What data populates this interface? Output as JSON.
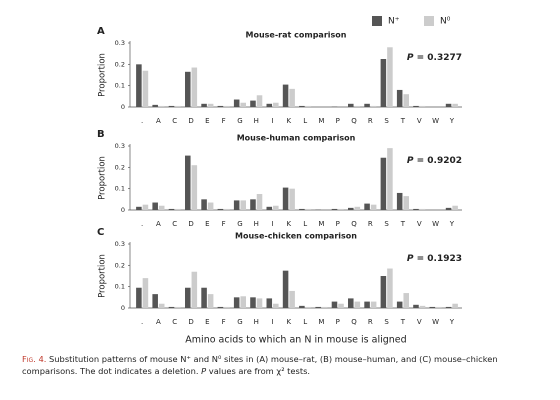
{
  "chart_data": [
    {
      "type": "bar",
      "panel": "A",
      "title": "Mouse-rat comparison",
      "annotation": {
        "symbol": "P",
        "text": " = 0.3277"
      },
      "ylabel": "Proportion",
      "categories": [
        ".",
        "A",
        "C",
        "D",
        "E",
        "F",
        "G",
        "H",
        "I",
        "K",
        "L",
        "M",
        "P",
        "Q",
        "R",
        "S",
        "T",
        "V",
        "W",
        "Y"
      ],
      "series": [
        {
          "name": "N⁺",
          "color": "#555555",
          "values": [
            0.2,
            0.01,
            0.005,
            0.165,
            0.015,
            0.005,
            0.035,
            0.03,
            0.015,
            0.105,
            0.005,
            0,
            0.002,
            0.015,
            0.015,
            0.225,
            0.08,
            0.005,
            0,
            0.015
          ]
        },
        {
          "name": "N⁰",
          "color": "#cccccc",
          "values": [
            0.17,
            0.005,
            0.005,
            0.185,
            0.015,
            0.005,
            0.02,
            0.055,
            0.02,
            0.085,
            0.005,
            0,
            0,
            0.005,
            0.005,
            0.28,
            0.06,
            0.005,
            0,
            0.015
          ]
        }
      ],
      "ylim": [
        0,
        0.3
      ],
      "yticks": [
        0,
        0.1,
        0.2,
        0.3
      ],
      "grid": false,
      "legend": "top-right"
    },
    {
      "type": "bar",
      "panel": "B",
      "title": "Mouse-human comparison",
      "annotation": {
        "symbol": "P",
        "text": " = 0.9202"
      },
      "ylabel": "Proportion",
      "categories": [
        ".",
        "A",
        "C",
        "D",
        "E",
        "F",
        "G",
        "H",
        "I",
        "K",
        "L",
        "M",
        "P",
        "Q",
        "R",
        "S",
        "T",
        "V",
        "W",
        "Y"
      ],
      "series": [
        {
          "color": "#555555",
          "values": [
            0.015,
            0.035,
            0.005,
            0.255,
            0.05,
            0.005,
            0.045,
            0.05,
            0.015,
            0.105,
            0.005,
            0.002,
            0.005,
            0.01,
            0.03,
            0.245,
            0.08,
            0.005,
            0,
            0.01
          ]
        },
        {
          "color": "#cccccc",
          "values": [
            0.025,
            0.02,
            0.005,
            0.21,
            0.035,
            0.005,
            0.045,
            0.075,
            0.02,
            0.1,
            0.005,
            0,
            0.005,
            0.015,
            0.025,
            0.29,
            0.065,
            0.005,
            0,
            0.02
          ]
        }
      ],
      "ylim": [
        0,
        0.3
      ],
      "yticks": [
        0,
        0.1,
        0.2,
        0.3
      ],
      "grid": false
    },
    {
      "type": "bar",
      "panel": "C",
      "title": "Mouse-chicken comparison",
      "annotation": {
        "symbol": "P",
        "text": " = 0.1923"
      },
      "ylabel": "Proportion",
      "xlabel": "Amino acids to which an N in mouse is aligned",
      "categories": [
        ".",
        "A",
        "C",
        "D",
        "E",
        "F",
        "G",
        "H",
        "I",
        "K",
        "L",
        "M",
        "P",
        "Q",
        "R",
        "S",
        "T",
        "V",
        "W",
        "Y"
      ],
      "series": [
        {
          "color": "#555555",
          "values": [
            0.095,
            0.065,
            0.005,
            0.095,
            0.095,
            0.005,
            0.05,
            0.05,
            0.045,
            0.175,
            0.01,
            0.005,
            0.03,
            0.045,
            0.03,
            0.15,
            0.03,
            0.015,
            0.005,
            0.005
          ]
        },
        {
          "color": "#cccccc",
          "values": [
            0.14,
            0.02,
            0.005,
            0.17,
            0.065,
            0.005,
            0.055,
            0.045,
            0.02,
            0.08,
            0.005,
            0.005,
            0.02,
            0.03,
            0.03,
            0.185,
            0.07,
            0.01,
            0.005,
            0.02
          ]
        }
      ],
      "ylim": [
        0,
        0.3
      ],
      "yticks": [
        0,
        0.1,
        0.2,
        0.3
      ],
      "grid": false
    }
  ],
  "caption": {
    "label": "Fig. 4.",
    "text": " Substitution patterns of mouse N⁺ and N⁰ sites in (A) mouse–rat, (B) mouse–human, and (C) mouse–chicken comparisons. The dot indicates a deletion. ",
    "symbol": "P",
    "tail": " values are from χ² tests."
  }
}
